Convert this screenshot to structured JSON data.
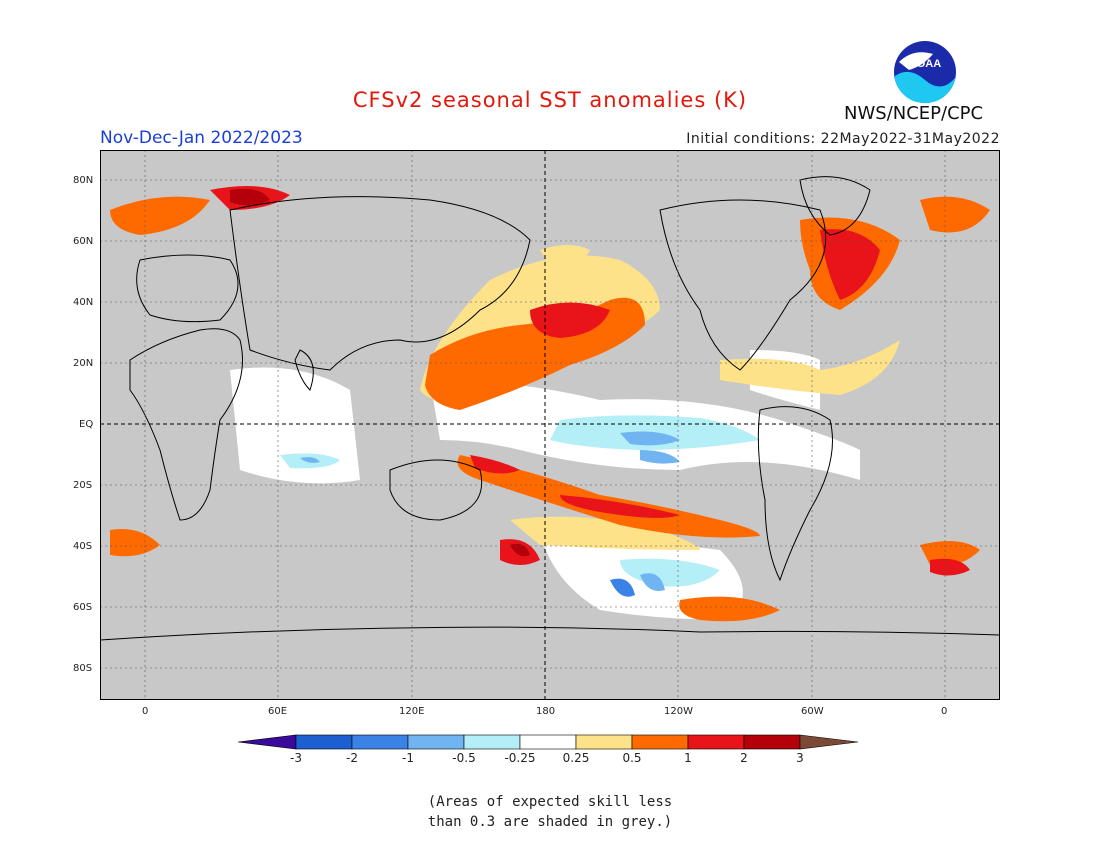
{
  "title": "CFSv2 seasonal SST anomalies (K)",
  "period": "Nov-Dec-Jan 2022/2023",
  "initial_conditions": "Initial conditions: 22May2022-31May2022",
  "agency": "NWS/NCEP/CPC",
  "logo_text": "NOAA",
  "note_line1": "(Areas of expected skill less",
  "note_line2": "than 0.3 are shaded in grey.)",
  "map": {
    "lat_labels": [
      "80N",
      "60N",
      "40N",
      "20N",
      "EQ",
      "20S",
      "40S",
      "60S",
      "80S"
    ],
    "lon_labels": [
      "0",
      "60E",
      "120E",
      "180",
      "120W",
      "60W",
      "0"
    ],
    "skill_mask_color": "#c8c8c8"
  },
  "colorbar": {
    "labels": [
      "-3",
      "-2",
      "-1",
      "-0.5",
      "-0.25",
      "0.25",
      "0.5",
      "1",
      "2",
      "3"
    ],
    "colors": [
      "#3a0a9c",
      "#1c5fd0",
      "#3a82e6",
      "#70b4f2",
      "#b4eef6",
      "#ffffff",
      "#fde28a",
      "#ff6a00",
      "#e8141a",
      "#b3000a",
      "#7a4a36"
    ]
  },
  "colors": {
    "title": "#e3170a",
    "period": "#1a3fd6",
    "grey_mask": "#c8c8c8"
  }
}
